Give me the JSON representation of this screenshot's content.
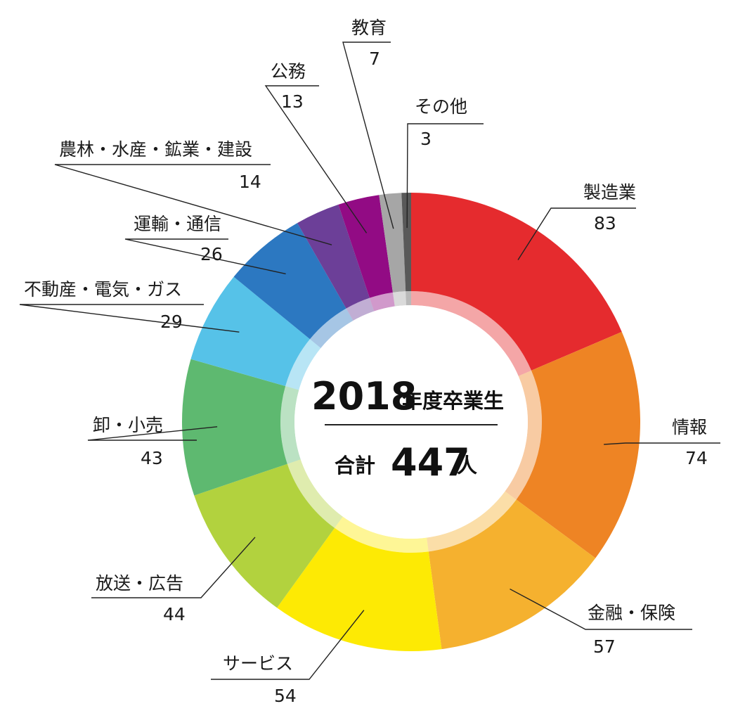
{
  "chart_data": {
    "type": "pie",
    "variant": "donut",
    "center": {
      "year": "2018",
      "year_suffix": "年度卒業生",
      "total_prefix": "合計",
      "total": "447",
      "total_unit": "人"
    },
    "slices": [
      {
        "label": "製造業",
        "value": 83,
        "color": "#e52b2e"
      },
      {
        "label": "情報",
        "value": 74,
        "color": "#ee8424"
      },
      {
        "label": "金融・保険",
        "value": 57,
        "color": "#f5b12f"
      },
      {
        "label": "サービス",
        "value": 54,
        "color": "#fdea04"
      },
      {
        "label": "放送・広告",
        "value": 44,
        "color": "#b2d23e"
      },
      {
        "label": "卸・小売",
        "value": 43,
        "color": "#5eb970"
      },
      {
        "label": "不動産・電気・ガス",
        "value": 29,
        "color": "#56c2e8"
      },
      {
        "label": "運輸・通信",
        "value": 26,
        "color": "#2c78c1"
      },
      {
        "label": "農林・水産・鉱業・建設",
        "value": 14,
        "color": "#6c3f98"
      },
      {
        "label": "公務",
        "value": 13,
        "color": "#920b84"
      },
      {
        "label": "教育",
        "value": 7,
        "color": "#a6a6a6"
      },
      {
        "label": "その他",
        "value": 3,
        "color": "#595959"
      }
    ]
  }
}
